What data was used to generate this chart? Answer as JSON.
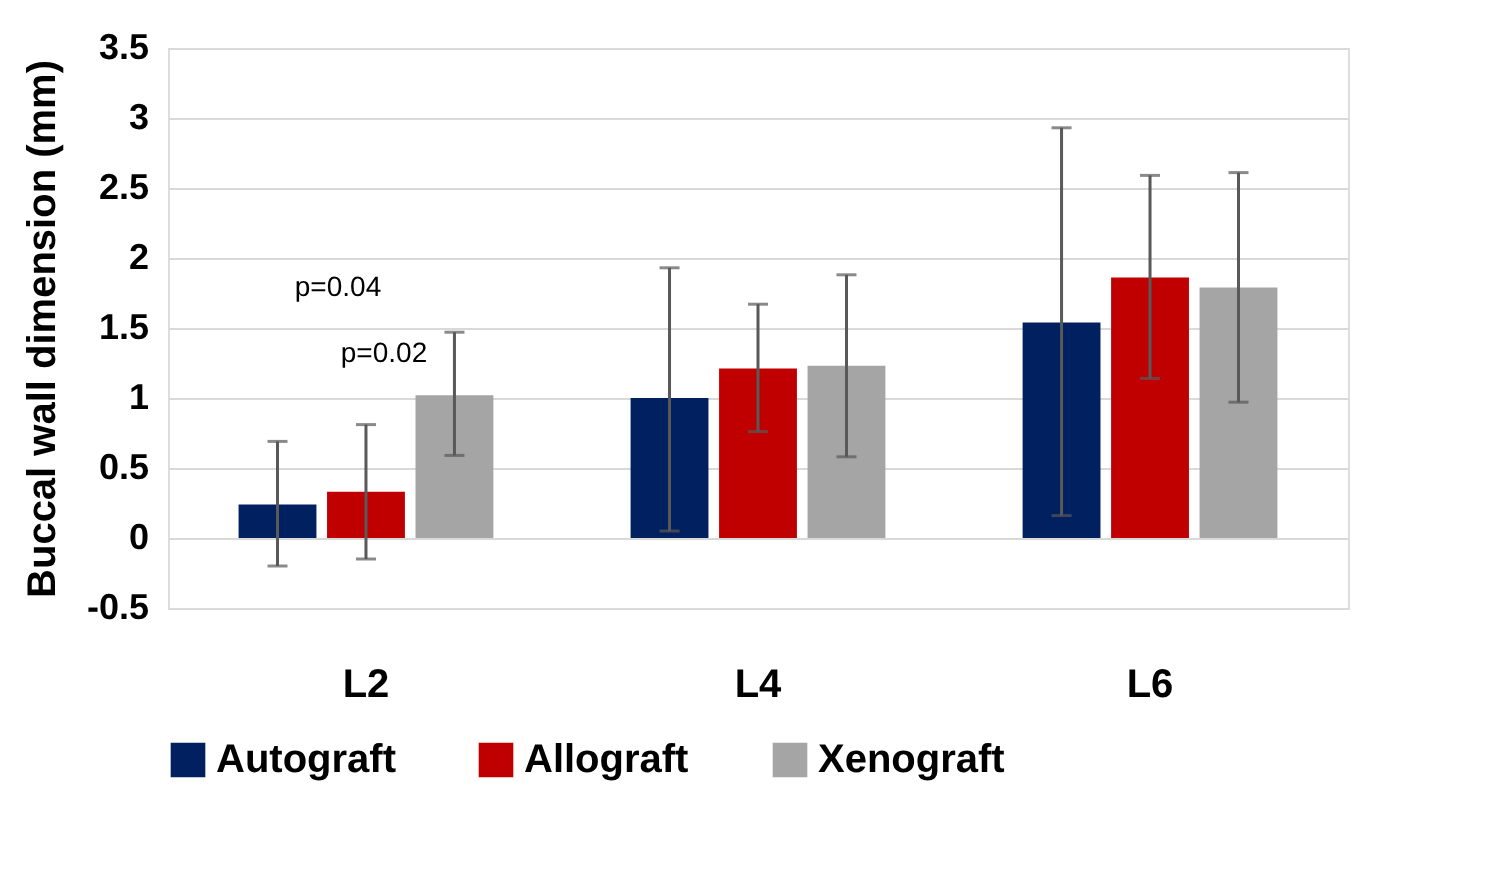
{
  "chart_data": {
    "type": "bar",
    "ylabel": "Buccal wall dimension (mm)",
    "categories": [
      "L2",
      "L4",
      "L6"
    ],
    "series": [
      {
        "name": "Autograft",
        "color": "#002060",
        "values": [
          0.24,
          1.0,
          1.54
        ],
        "errors": [
          [
            -0.2,
            0.69
          ],
          [
            0.05,
            1.93
          ],
          [
            0.16,
            2.93
          ]
        ]
      },
      {
        "name": "Allograft",
        "color": "#c00000",
        "values": [
          0.33,
          1.21,
          1.86
        ],
        "errors": [
          [
            -0.15,
            0.81
          ],
          [
            0.76,
            1.67
          ],
          [
            1.14,
            2.59
          ]
        ]
      },
      {
        "name": "Xenograft",
        "color": "#a5a5a5",
        "values": [
          1.02,
          1.23,
          1.79
        ],
        "errors": [
          [
            0.59,
            1.47
          ],
          [
            0.58,
            1.88
          ],
          [
            0.97,
            2.61
          ]
        ]
      }
    ],
    "ylim": [
      -0.5,
      3.5
    ],
    "yticks": [
      -0.5,
      0,
      0.5,
      1,
      1.5,
      2,
      2.5,
      3,
      3.5
    ],
    "grid": "y",
    "legend": "bottom",
    "annotations": [
      "p=0.04",
      "p=0.02"
    ]
  }
}
